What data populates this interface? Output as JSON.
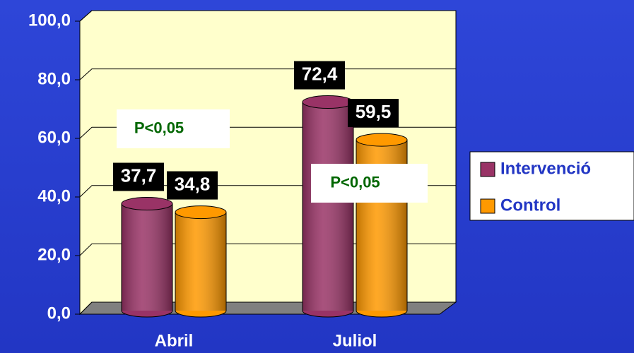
{
  "chart_data": {
    "type": "bar",
    "categories": [
      "Abril",
      "Juliol"
    ],
    "series": [
      {
        "name": "Intervenció",
        "color": "#993366",
        "values": [
          37.7,
          72.4
        ],
        "value_labels": [
          "37,7",
          "72,4"
        ]
      },
      {
        "name": "Control",
        "color": "#FF9900",
        "values": [
          34.8,
          59.5
        ],
        "value_labels": [
          "34,8",
          "59,5"
        ]
      }
    ],
    "ylim": [
      0,
      100
    ],
    "yticks": [
      {
        "value": 0,
        "label": "0,0"
      },
      {
        "value": 20,
        "label": "20,0"
      },
      {
        "value": 40,
        "label": "40,0"
      },
      {
        "value": 60,
        "label": "60,0"
      },
      {
        "value": 80,
        "label": "80,0"
      },
      {
        "value": 100,
        "label": "100,0"
      }
    ],
    "annotations": [
      "P<0,05",
      "P<0,05"
    ],
    "grid": true,
    "legend": "right"
  }
}
